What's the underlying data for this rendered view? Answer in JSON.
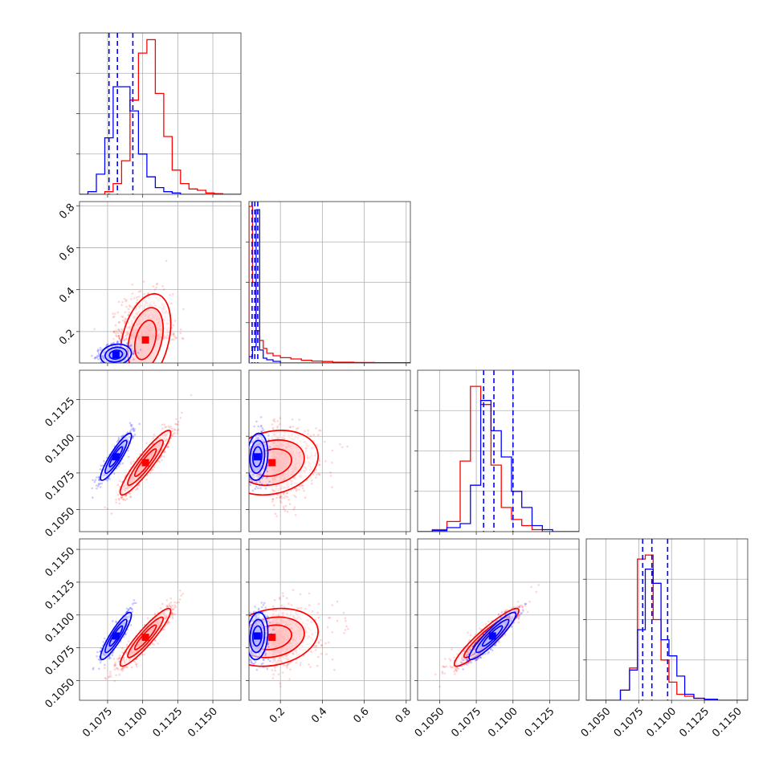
{
  "chart_data": {
    "type": "corner",
    "grid": true,
    "colors": {
      "blue": "#0000ff",
      "red": "#ff0000"
    },
    "series": [
      {
        "color": "blue"
      },
      {
        "color": "red"
      }
    ],
    "params": [
      {
        "range": [
          0.1055,
          0.117
        ],
        "ticks": [
          0.1075,
          0.11,
          0.1125,
          0.115
        ],
        "tick_labels": [
          "0.1075",
          "0.1100",
          "0.1125",
          "0.1150"
        ]
      },
      {
        "range": [
          0.05,
          0.82
        ],
        "ticks": [
          0.2,
          0.4,
          0.6,
          0.8
        ],
        "tick_labels": [
          "0.2",
          "0.4",
          "0.6",
          "0.8"
        ]
      },
      {
        "range": [
          0.1035,
          0.1145
        ],
        "ticks": [
          0.105,
          0.1075,
          0.11,
          0.1125
        ],
        "tick_labels": [
          "0.1050",
          "0.1075",
          "0.1100",
          "0.1125"
        ]
      },
      {
        "range": [
          0.1035,
          0.1158
        ],
        "ticks": [
          0.105,
          0.1075,
          0.11,
          0.1125,
          0.115
        ],
        "tick_labels": [
          "0.1050",
          "0.1075",
          "0.1100",
          "0.1125",
          "0.1150"
        ]
      }
    ],
    "histograms": [
      {
        "bins": [
          0.1055,
          0.1061,
          0.1067,
          0.1073,
          0.1079,
          0.1085,
          0.1091,
          0.1097,
          0.1103,
          0.1109,
          0.1115,
          0.1121,
          0.1127,
          0.1133,
          0.1139,
          0.1145,
          0.1151,
          0.1157,
          0.1163,
          0.117
        ],
        "blue": [
          0.0,
          0.2,
          1.5,
          4.2,
          8.0,
          8.0,
          6.2,
          3.0,
          1.3,
          0.5,
          0.2,
          0.1,
          0.0,
          0.0,
          0.0,
          0.0,
          0.0,
          0.0,
          0.0
        ],
        "red": [
          0.0,
          0.0,
          0.0,
          0.2,
          0.8,
          2.5,
          7.0,
          10.5,
          11.5,
          7.5,
          4.3,
          1.8,
          0.8,
          0.4,
          0.3,
          0.1,
          0.05,
          0.0,
          0.0
        ],
        "blue_quantiles": [
          0.1076,
          0.1082,
          0.1093
        ],
        "ymax": 12
      },
      {
        "bins": [
          0.05,
          0.067,
          0.084,
          0.101,
          0.118,
          0.135,
          0.165,
          0.2,
          0.25,
          0.3,
          0.35,
          0.4,
          0.45,
          0.55,
          0.65,
          0.82
        ],
        "blue": [
          0.4,
          1.0,
          9.5,
          0.8,
          0.3,
          0.2,
          0.1,
          0.0,
          0.0,
          0.0,
          0.0,
          0.0,
          0.0,
          0.0,
          0.0
        ],
        "red": [
          9.7,
          5.0,
          2.0,
          1.4,
          0.9,
          0.6,
          0.45,
          0.33,
          0.25,
          0.17,
          0.12,
          0.09,
          0.05,
          0.03,
          0.02
        ],
        "blue_quantiles": [
          0.065,
          0.078,
          0.092
        ],
        "ymax": 10
      },
      {
        "bins": [
          0.1035,
          0.1045,
          0.1055,
          0.1064,
          0.1071,
          0.1078,
          0.1085,
          0.1092,
          0.1099,
          0.1106,
          0.1113,
          0.112,
          0.1127,
          0.1134,
          0.1145
        ],
        "blue": [
          0.0,
          0.05,
          0.2,
          0.4,
          2.3,
          6.5,
          5.0,
          3.7,
          2.0,
          1.2,
          0.3,
          0.1,
          0.0,
          0.0
        ],
        "red": [
          0.0,
          0.1,
          0.5,
          3.5,
          7.2,
          6.3,
          3.3,
          1.2,
          0.6,
          0.3,
          0.1,
          0.0,
          0.0,
          0.0
        ],
        "blue_quantiles": [
          0.108,
          0.1087,
          0.11
        ],
        "ymax": 8
      },
      {
        "bins": [
          0.1035,
          0.1048,
          0.1061,
          0.1068,
          0.1074,
          0.108,
          0.1086,
          0.1092,
          0.1098,
          0.1104,
          0.111,
          0.1117,
          0.1125,
          0.1135,
          0.1158
        ],
        "blue": [
          0.0,
          0.0,
          0.5,
          1.5,
          3.5,
          6.5,
          5.8,
          3.0,
          2.2,
          1.2,
          0.3,
          0.1,
          0.05,
          0.0
        ],
        "red": [
          0.0,
          0.0,
          0.5,
          1.6,
          7.0,
          7.2,
          4.0,
          2.0,
          0.9,
          0.3,
          0.2,
          0.1,
          0.0,
          0.0
        ],
        "blue_quantiles": [
          0.1078,
          0.1085,
          0.1097
        ],
        "ymax": 8
      }
    ],
    "distributions": {
      "blue": {
        "mean": [
          0.1081,
          0.09,
          0.1086,
          0.1084
        ],
        "sd": [
          0.00055,
          0.025,
          0.0008,
          0.0009
        ],
        "corr": [
          [
            1,
            0.15,
            0.9,
            0.9
          ],
          [
            0.15,
            1,
            0.15,
            0.15
          ],
          [
            0.9,
            0.15,
            1,
            0.92
          ],
          [
            0.9,
            0.15,
            0.92,
            1
          ]
        ]
      },
      "red": {
        "mean": [
          0.1102,
          0.16,
          0.1082,
          0.1083
        ],
        "sd": [
          0.0009,
          0.11,
          0.0011,
          0.0011
        ],
        "corr": [
          [
            1,
            0.35,
            0.92,
            0.92
          ],
          [
            0.35,
            1,
            0.2,
            0.2
          ],
          [
            0.92,
            0.2,
            1,
            0.93
          ],
          [
            0.92,
            0.2,
            0.93,
            1
          ]
        ]
      }
    }
  }
}
